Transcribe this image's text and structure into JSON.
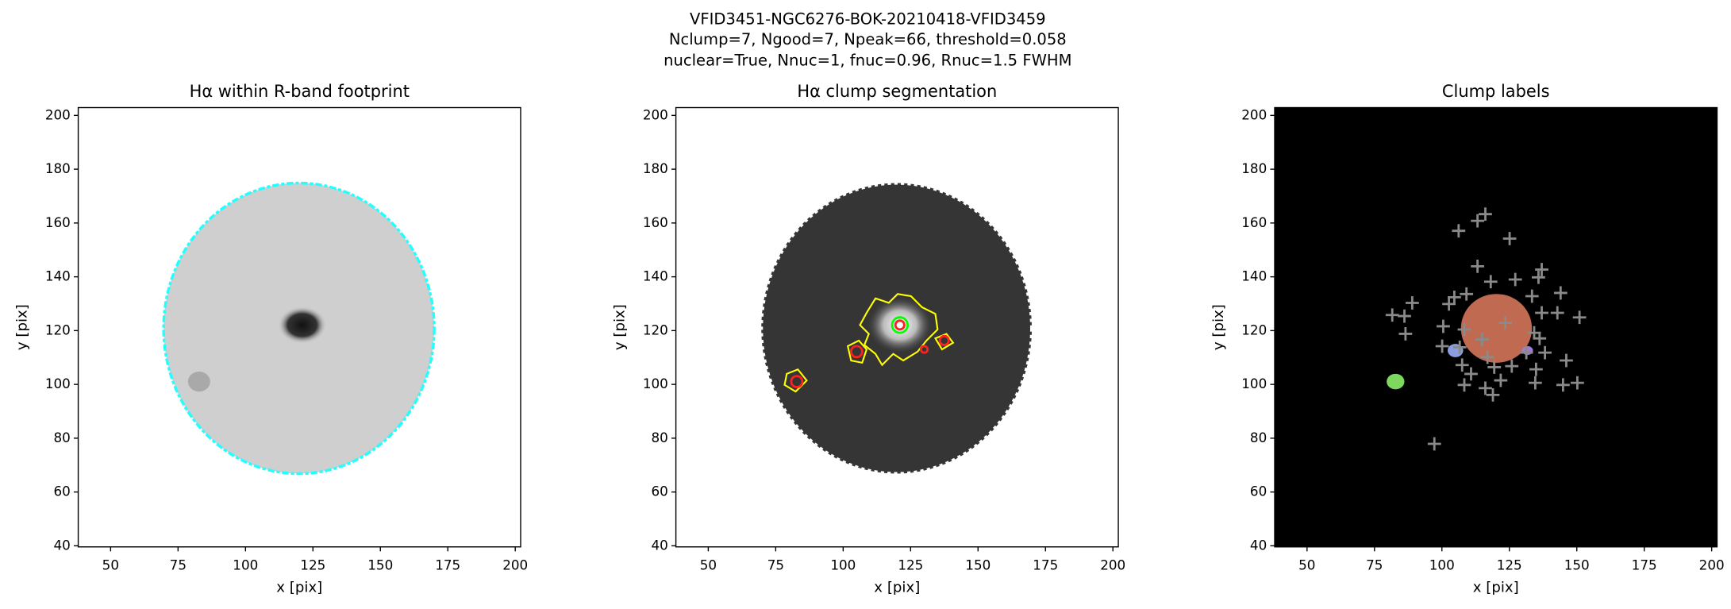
{
  "title": [
    "VFID3451-NGC6276-BOK-20210418-VFID3459",
    "Nclump=7, Ngood=7, Npeak=66, threshold=0.058",
    "nuclear=True, Nnuc=1, fnuc=0.96, Rnuc=1.5 FWHM"
  ],
  "chart_data": [
    {
      "type": "image",
      "title": "Hα within R-band footprint",
      "xlabel": "x [pix]",
      "ylabel": "y [pix]",
      "xlim": [
        38,
        202
      ],
      "ylim": [
        39.6,
        202.9
      ],
      "xticks": [
        50,
        75,
        100,
        125,
        150,
        175,
        200
      ],
      "yticks": [
        40,
        60,
        80,
        100,
        120,
        140,
        160,
        180,
        200
      ]
    },
    {
      "type": "image",
      "title": "Hα clump segmentation",
      "xlabel": "x [pix]",
      "ylabel": "y [pix]",
      "xlim": [
        38,
        202
      ],
      "ylim": [
        39.6,
        202.9
      ],
      "xticks": [
        50,
        75,
        100,
        125,
        150,
        175,
        200
      ],
      "yticks": [
        40,
        60,
        80,
        100,
        120,
        140,
        160,
        180,
        200
      ]
    },
    {
      "type": "scatter",
      "title": "Clump labels",
      "xlabel": "x [pix]",
      "ylabel": "y [pix]",
      "xlim": [
        38,
        202
      ],
      "ylim": [
        39.6,
        202.9
      ],
      "xticks": [
        50,
        75,
        100,
        125,
        150,
        175,
        200
      ],
      "yticks": [
        40,
        60,
        80,
        100,
        120,
        140,
        160,
        180,
        200
      ],
      "color": "#8a8a8a",
      "x": [
        116.1,
        113.2,
        106.2,
        125.1,
        113.2,
        137.0,
        135.8,
        127.2,
        118.1,
        104.6,
        133.4,
        144.0,
        89.0,
        102.6,
        109.1,
        81.6,
        86.1,
        142.8,
        151.0,
        137.0,
        123.5,
        100.5,
        86.5,
        108.3,
        134.2,
        114.9,
        100.1,
        106.6,
        136.2,
        138.2,
        131.3,
        116.9,
        146.1,
        107.5,
        119.4,
        110.8,
        125.9,
        134.9,
        121.8,
        108.3,
        116.1,
        118.9,
        134.6,
        144.9,
        150.2,
        97.2
      ],
      "y": [
        163.3,
        160.8,
        157.1,
        154.2,
        143.9,
        142.7,
        139.8,
        139.0,
        138.2,
        132.4,
        132.8,
        134.0,
        130.3,
        129.9,
        133.6,
        125.8,
        125.4,
        126.6,
        124.9,
        126.6,
        122.9,
        121.6,
        118.8,
        120.4,
        119.2,
        116.7,
        114.2,
        113.8,
        117.1,
        111.8,
        111.8,
        110.1,
        108.9,
        107.2,
        106.4,
        103.9,
        106.8,
        105.6,
        101.5,
        99.8,
        98.6,
        96.1,
        100.6,
        99.8,
        100.6,
        77.9
      ]
    }
  ]
}
